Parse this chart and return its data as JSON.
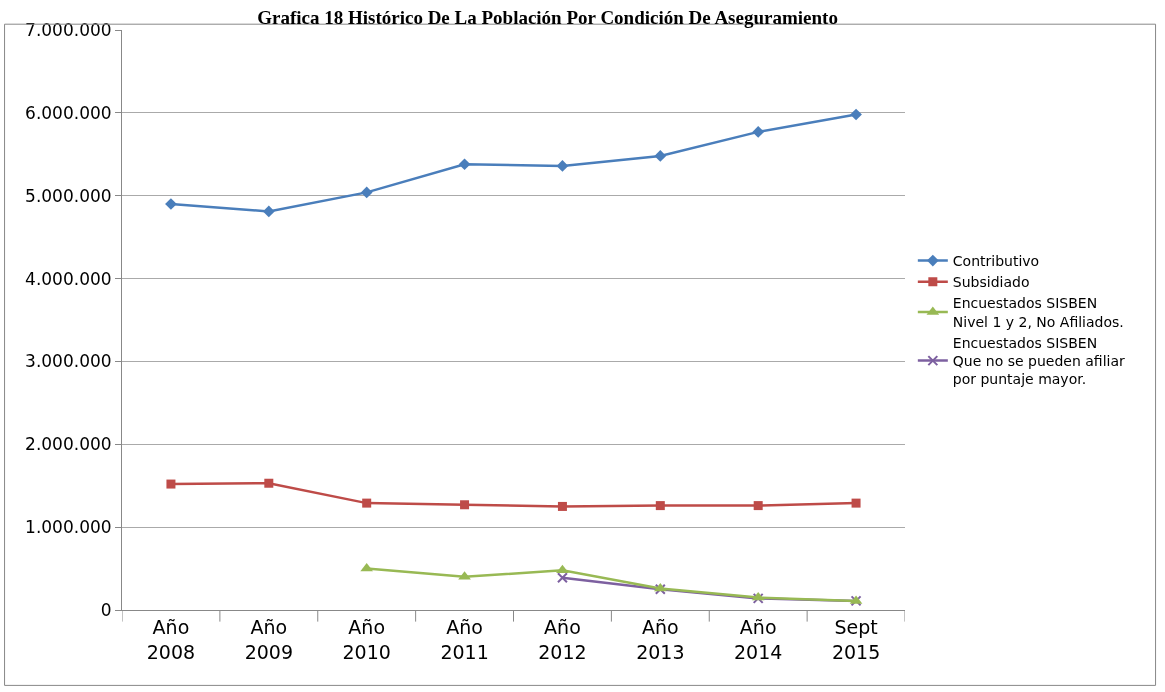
{
  "chart_data": {
    "type": "line",
    "title": "Grafica 18 Histórico De La Población Por Condición De Aseguramiento",
    "categories": [
      "Año\n2008",
      "Año\n2009",
      "Año\n2010",
      "Año\n2011",
      "Año\n2012",
      "Año\n2013",
      "Año\n2014",
      "Sept\n2015"
    ],
    "series": [
      {
        "name": "Contributivo",
        "color": "#4a7ebb",
        "marker": "diamond",
        "values": [
          4900000,
          4810000,
          5040000,
          5380000,
          5360000,
          5480000,
          5770000,
          5980000
        ]
      },
      {
        "name": "Subsidiado",
        "color": "#be4b48",
        "marker": "square",
        "values": [
          1520000,
          1530000,
          1290000,
          1270000,
          1250000,
          1260000,
          1260000,
          1290000
        ]
      },
      {
        "name": "Encuestados SISBEN\nNivel 1 y 2, No Afiliados.",
        "color": "#98b954",
        "marker": "triangle",
        "values": [
          null,
          null,
          500000,
          400000,
          480000,
          260000,
          150000,
          110000
        ]
      },
      {
        "name": "Encuestados SISBEN\nQue no se pueden afiliar\npor puntaje mayor.",
        "color": "#7d60a0",
        "marker": "cross",
        "values": [
          null,
          null,
          null,
          null,
          390000,
          250000,
          140000,
          110000
        ]
      }
    ],
    "ylim": [
      0,
      7000000
    ],
    "yticks": [
      {
        "value": 0,
        "label": "0"
      },
      {
        "value": 1000000,
        "label": "1.000.000"
      },
      {
        "value": 2000000,
        "label": "2.000.000"
      },
      {
        "value": 3000000,
        "label": "3.000.000"
      },
      {
        "value": 4000000,
        "label": "4.000.000"
      },
      {
        "value": 5000000,
        "label": "5.000.000"
      },
      {
        "value": 6000000,
        "label": "6.000.000"
      },
      {
        "value": 7000000,
        "label": "7.000.000"
      }
    ],
    "grid": "y",
    "legend": "right",
    "line_style": "solid"
  }
}
